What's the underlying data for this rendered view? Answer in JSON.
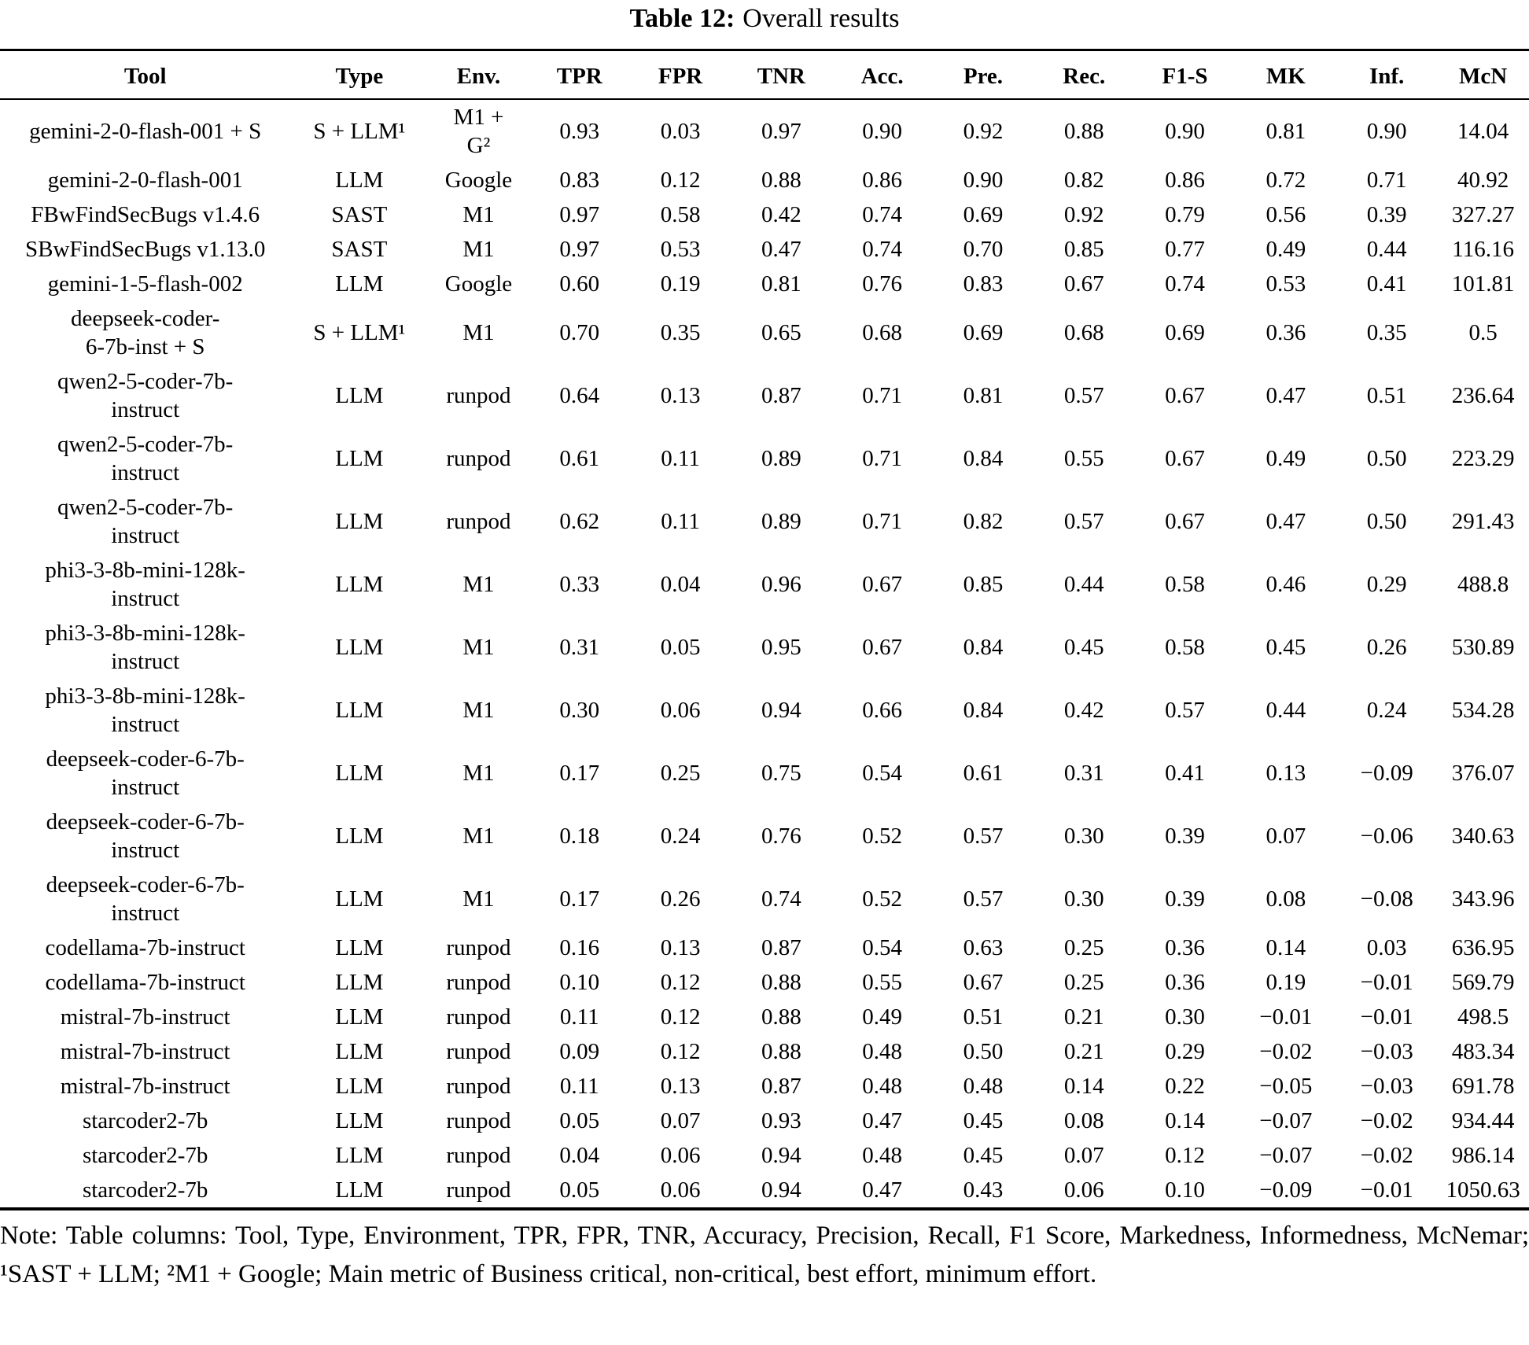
{
  "colors": {
    "text": "#000000",
    "background": "#ffffff"
  },
  "caption": {
    "label": "Table 12:",
    "text": "Overall results"
  },
  "table": {
    "columns": [
      "Tool",
      "Type",
      "Env.",
      "TPR",
      "FPR",
      "TNR",
      "Acc.",
      "Pre.",
      "Rec.",
      "F1-S",
      "MK",
      "Inf.",
      "McN"
    ],
    "rows": [
      [
        "gemini-2-0-flash-001 + S",
        "S + LLM¹",
        "M1 +\nG²",
        "0.93",
        "0.03",
        "0.97",
        "0.90",
        "0.92",
        "0.88",
        "0.90",
        "0.81",
        "0.90",
        "14.04"
      ],
      [
        "gemini-2-0-flash-001",
        "LLM",
        "Google",
        "0.83",
        "0.12",
        "0.88",
        "0.86",
        "0.90",
        "0.82",
        "0.86",
        "0.72",
        "0.71",
        "40.92"
      ],
      [
        "FBwFindSecBugs v1.4.6",
        "SAST",
        "M1",
        "0.97",
        "0.58",
        "0.42",
        "0.74",
        "0.69",
        "0.92",
        "0.79",
        "0.56",
        "0.39",
        "327.27"
      ],
      [
        "SBwFindSecBugs v1.13.0",
        "SAST",
        "M1",
        "0.97",
        "0.53",
        "0.47",
        "0.74",
        "0.70",
        "0.85",
        "0.77",
        "0.49",
        "0.44",
        "116.16"
      ],
      [
        "gemini-1-5-flash-002",
        "LLM",
        "Google",
        "0.60",
        "0.19",
        "0.81",
        "0.76",
        "0.83",
        "0.67",
        "0.74",
        "0.53",
        "0.41",
        "101.81"
      ],
      [
        "deepseek-coder-\n6-7b-inst + S",
        "S + LLM¹",
        "M1",
        "0.70",
        "0.35",
        "0.65",
        "0.68",
        "0.69",
        "0.68",
        "0.69",
        "0.36",
        "0.35",
        "0.5"
      ],
      [
        "qwen2-5-coder-7b-\ninstruct",
        "LLM",
        "runpod",
        "0.64",
        "0.13",
        "0.87",
        "0.71",
        "0.81",
        "0.57",
        "0.67",
        "0.47",
        "0.51",
        "236.64"
      ],
      [
        "qwen2-5-coder-7b-\ninstruct",
        "LLM",
        "runpod",
        "0.61",
        "0.11",
        "0.89",
        "0.71",
        "0.84",
        "0.55",
        "0.67",
        "0.49",
        "0.50",
        "223.29"
      ],
      [
        "qwen2-5-coder-7b-\ninstruct",
        "LLM",
        "runpod",
        "0.62",
        "0.11",
        "0.89",
        "0.71",
        "0.82",
        "0.57",
        "0.67",
        "0.47",
        "0.50",
        "291.43"
      ],
      [
        "phi3-3-8b-mini-128k-\ninstruct",
        "LLM",
        "M1",
        "0.33",
        "0.04",
        "0.96",
        "0.67",
        "0.85",
        "0.44",
        "0.58",
        "0.46",
        "0.29",
        "488.8"
      ],
      [
        "phi3-3-8b-mini-128k-\ninstruct",
        "LLM",
        "M1",
        "0.31",
        "0.05",
        "0.95",
        "0.67",
        "0.84",
        "0.45",
        "0.58",
        "0.45",
        "0.26",
        "530.89"
      ],
      [
        "phi3-3-8b-mini-128k-\ninstruct",
        "LLM",
        "M1",
        "0.30",
        "0.06",
        "0.94",
        "0.66",
        "0.84",
        "0.42",
        "0.57",
        "0.44",
        "0.24",
        "534.28"
      ],
      [
        "deepseek-coder-6-7b-\ninstruct",
        "LLM",
        "M1",
        "0.17",
        "0.25",
        "0.75",
        "0.54",
        "0.61",
        "0.31",
        "0.41",
        "0.13",
        "−0.09",
        "376.07"
      ],
      [
        "deepseek-coder-6-7b-\ninstruct",
        "LLM",
        "M1",
        "0.18",
        "0.24",
        "0.76",
        "0.52",
        "0.57",
        "0.30",
        "0.39",
        "0.07",
        "−0.06",
        "340.63"
      ],
      [
        "deepseek-coder-6-7b-\ninstruct",
        "LLM",
        "M1",
        "0.17",
        "0.26",
        "0.74",
        "0.52",
        "0.57",
        "0.30",
        "0.39",
        "0.08",
        "−0.08",
        "343.96"
      ],
      [
        "codellama-7b-instruct",
        "LLM",
        "runpod",
        "0.16",
        "0.13",
        "0.87",
        "0.54",
        "0.63",
        "0.25",
        "0.36",
        "0.14",
        "0.03",
        "636.95"
      ],
      [
        "codellama-7b-instruct",
        "LLM",
        "runpod",
        "0.10",
        "0.12",
        "0.88",
        "0.55",
        "0.67",
        "0.25",
        "0.36",
        "0.19",
        "−0.01",
        "569.79"
      ],
      [
        "mistral-7b-instruct",
        "LLM",
        "runpod",
        "0.11",
        "0.12",
        "0.88",
        "0.49",
        "0.51",
        "0.21",
        "0.30",
        "−0.01",
        "−0.01",
        "498.5"
      ],
      [
        "mistral-7b-instruct",
        "LLM",
        "runpod",
        "0.09",
        "0.12",
        "0.88",
        "0.48",
        "0.50",
        "0.21",
        "0.29",
        "−0.02",
        "−0.03",
        "483.34"
      ],
      [
        "mistral-7b-instruct",
        "LLM",
        "runpod",
        "0.11",
        "0.13",
        "0.87",
        "0.48",
        "0.48",
        "0.14",
        "0.22",
        "−0.05",
        "−0.03",
        "691.78"
      ],
      [
        "starcoder2-7b",
        "LLM",
        "runpod",
        "0.05",
        "0.07",
        "0.93",
        "0.47",
        "0.45",
        "0.08",
        "0.14",
        "−0.07",
        "−0.02",
        "934.44"
      ],
      [
        "starcoder2-7b",
        "LLM",
        "runpod",
        "0.04",
        "0.06",
        "0.94",
        "0.48",
        "0.45",
        "0.07",
        "0.12",
        "−0.07",
        "−0.02",
        "986.14"
      ],
      [
        "starcoder2-7b",
        "LLM",
        "runpod",
        "0.05",
        "0.06",
        "0.94",
        "0.47",
        "0.43",
        "0.06",
        "0.10",
        "−0.09",
        "−0.01",
        "1050.63"
      ]
    ]
  },
  "note": "Note: Table columns: Tool, Type, Environment, TPR, FPR, TNR, Accuracy, Precision, Recall, F1 Score, Markedness, Informedness, McNemar; ¹SAST + LLM; ²M1 + Google; Main metric of Business critical, non-critical, best effort, minimum effort."
}
